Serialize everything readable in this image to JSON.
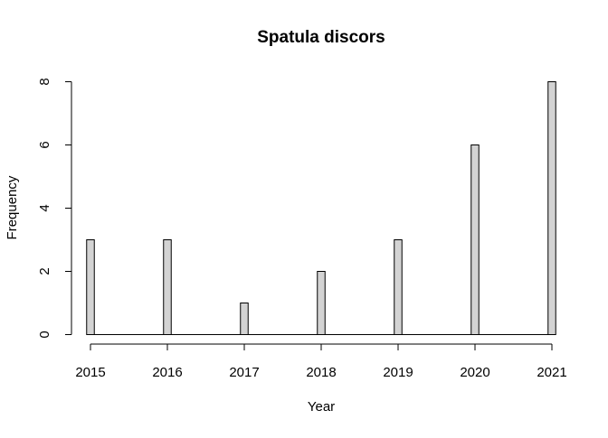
{
  "chart_data": {
    "type": "bar",
    "title": "Spatula discors",
    "xlabel": "Year",
    "ylabel": "Frequency",
    "x_ticks": [
      "2015",
      "2016",
      "2017",
      "2018",
      "2019",
      "2020",
      "2021"
    ],
    "y_ticks": [
      "0",
      "2",
      "4",
      "6",
      "8"
    ],
    "xlim": [
      2015,
      2021
    ],
    "ylim": [
      0,
      8
    ],
    "bin_width": 0.1,
    "bins": [
      {
        "x": 2015,
        "value": 3
      },
      {
        "x": 2016,
        "value": 3
      },
      {
        "x": 2017,
        "value": 1
      },
      {
        "x": 2018,
        "value": 2
      },
      {
        "x": 2019,
        "value": 3
      },
      {
        "x": 2020,
        "value": 6
      },
      {
        "x": 2021,
        "value": 8
      }
    ],
    "bar_fill": "#d3d3d3",
    "bar_stroke": "#000000",
    "grid": false,
    "legend": "none"
  }
}
